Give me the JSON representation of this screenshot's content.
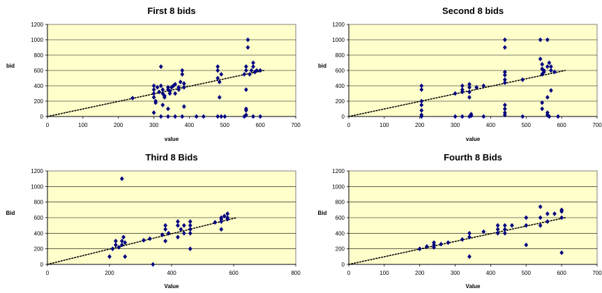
{
  "chart_data": [
    {
      "type": "scatter",
      "title": "First 8 bids",
      "xlabel": "value",
      "ylabel": "bid",
      "xlim": [
        0,
        700
      ],
      "ylim": [
        0,
        1200
      ],
      "xticks": [
        0,
        100,
        200,
        300,
        400,
        500,
        600,
        700
      ],
      "yticks": [
        0,
        200,
        400,
        600,
        800,
        1000,
        1200
      ],
      "grid": "horizontal",
      "plot_background": "#FFFFCC",
      "marker_color": "#000080",
      "trendline": {
        "style": "dotted",
        "x": [
          0,
          610
        ],
        "y": [
          0,
          600
        ]
      },
      "points": {
        "x": [
          240,
          300,
          300,
          300,
          300,
          305,
          310,
          315,
          320,
          320,
          325,
          325,
          330,
          330,
          340,
          340,
          345,
          345,
          350,
          355,
          360,
          360,
          370,
          370,
          375,
          380,
          380,
          385,
          385,
          300,
          320,
          340,
          360,
          380,
          420,
          440,
          480,
          500,
          480,
          480,
          490,
          480,
          485,
          485,
          490,
          555,
          560,
          560,
          565,
          565,
          570,
          575,
          580,
          580,
          585,
          560,
          560,
          590,
          600,
          560,
          560,
          555,
          580,
          340,
          385,
          325,
          305,
          600
        ],
        "y": [
          240,
          400,
          350,
          300,
          250,
          200,
          380,
          320,
          650,
          400,
          350,
          300,
          270,
          250,
          380,
          350,
          330,
          300,
          380,
          400,
          420,
          300,
          380,
          350,
          450,
          600,
          550,
          430,
          380,
          50,
          0,
          0,
          0,
          0,
          0,
          0,
          0,
          0,
          650,
          600,
          550,
          500,
          450,
          250,
          0,
          550,
          600,
          650,
          900,
          1000,
          550,
          600,
          700,
          650,
          580,
          350,
          100,
          600,
          600,
          80,
          20,
          0,
          0,
          100,
          130,
          150,
          180,
          0
        ]
      }
    },
    {
      "type": "scatter",
      "title": "Second 8 bids",
      "xlabel": "value",
      "ylabel": "bid",
      "xlim": [
        0,
        700
      ],
      "ylim": [
        0,
        1200
      ],
      "xticks": [
        0,
        100,
        200,
        300,
        400,
        500,
        600,
        700
      ],
      "yticks": [
        0,
        200,
        400,
        600,
        800,
        1000,
        1200
      ],
      "grid": "horizontal",
      "plot_background": "#FFFFCC",
      "marker_color": "#000080",
      "trendline": {
        "style": "dotted",
        "x": [
          0,
          610
        ],
        "y": [
          0,
          600
        ]
      },
      "points": {
        "x": [
          205,
          205,
          205,
          205,
          205,
          205,
          205,
          300,
          300,
          320,
          320,
          320,
          320,
          340,
          340,
          340,
          340,
          340,
          345,
          345,
          360,
          380,
          380,
          440,
          440,
          440,
          440,
          440,
          440,
          440,
          440,
          440,
          440,
          490,
          490,
          540,
          540,
          545,
          545,
          545,
          550,
          550,
          560,
          560,
          565,
          570,
          570,
          580,
          570,
          560,
          545,
          545,
          560,
          560,
          565,
          590
        ],
        "y": [
          400,
          350,
          200,
          150,
          80,
          20,
          0,
          300,
          0,
          400,
          350,
          320,
          0,
          420,
          380,
          320,
          250,
          0,
          30,
          10,
          380,
          400,
          0,
          1000,
          900,
          580,
          540,
          480,
          440,
          150,
          100,
          50,
          20,
          480,
          0,
          1000,
          750,
          680,
          620,
          550,
          600,
          580,
          650,
          1000,
          700,
          650,
          600,
          580,
          340,
          250,
          180,
          100,
          50,
          20,
          0,
          0
        ]
      }
    },
    {
      "type": "scatter",
      "title": "Third 8 Bids",
      "xlabel": "Value",
      "ylabel": "Bid",
      "xlim": [
        0,
        800
      ],
      "ylim": [
        0,
        1200
      ],
      "xticks": [
        0,
        200,
        400,
        600,
        800
      ],
      "yticks": [
        0,
        200,
        400,
        600,
        800,
        1000,
        1200
      ],
      "grid": "horizontal",
      "plot_background": "#FFFFCC",
      "marker_color": "#000080",
      "trendline": {
        "style": "dotted",
        "x": [
          0,
          610
        ],
        "y": [
          0,
          600
        ]
      },
      "points": {
        "x": [
          200,
          210,
          220,
          220,
          230,
          240,
          240,
          250,
          240,
          250,
          310,
          330,
          340,
          370,
          380,
          380,
          390,
          380,
          420,
          420,
          420,
          430,
          440,
          440,
          460,
          460,
          460,
          460,
          460,
          540,
          560,
          560,
          560,
          570,
          580,
          580,
          580,
          560,
          245
        ],
        "y": [
          100,
          200,
          250,
          300,
          220,
          300,
          250,
          280,
          1100,
          100,
          310,
          330,
          0,
          380,
          450,
          500,
          400,
          300,
          550,
          500,
          350,
          450,
          500,
          400,
          550,
          500,
          450,
          400,
          200,
          540,
          600,
          580,
          550,
          620,
          650,
          600,
          580,
          450,
          350
        ]
      }
    },
    {
      "type": "scatter",
      "title": "Fourth 8 Bids",
      "xlabel": "Value",
      "ylabel": "Bid",
      "xlim": [
        0,
        700
      ],
      "ylim": [
        0,
        1200
      ],
      "xticks": [
        0,
        100,
        200,
        300,
        400,
        500,
        600,
        700
      ],
      "yticks": [
        0,
        200,
        400,
        600,
        800,
        1000,
        1200
      ],
      "grid": "horizontal",
      "plot_background": "#FFFFCC",
      "marker_color": "#000080",
      "trendline": {
        "style": "dotted",
        "x": [
          0,
          610
        ],
        "y": [
          0,
          600
        ]
      },
      "points": {
        "x": [
          200,
          220,
          240,
          240,
          240,
          260,
          280,
          320,
          340,
          340,
          340,
          380,
          420,
          420,
          420,
          440,
          440,
          440,
          460,
          500,
          500,
          500,
          540,
          540,
          540,
          560,
          560,
          580,
          600,
          600,
          600,
          600
        ],
        "y": [
          200,
          230,
          250,
          280,
          220,
          260,
          280,
          320,
          400,
          350,
          100,
          420,
          500,
          450,
          400,
          500,
          450,
          400,
          500,
          600,
          500,
          250,
          740,
          600,
          500,
          650,
          550,
          650,
          700,
          680,
          600,
          150
        ]
      }
    }
  ]
}
